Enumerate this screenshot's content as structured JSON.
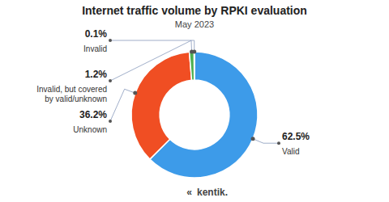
{
  "chart_data": {
    "type": "pie",
    "title": "Internet traffic volume by RPKI evaluation",
    "subtitle": "May 2023",
    "categories": [
      "Valid",
      "Unknown",
      "Invalid, but covered\nby valid/unknown",
      "Invalid"
    ],
    "values": [
      62.5,
      36.2,
      1.2,
      0.1
    ],
    "value_labels": [
      "62.5%",
      "36.2%",
      "1.2%",
      "0.1%"
    ],
    "colors": [
      "#3d9be9",
      "#f04e23",
      "#4caf50",
      "#1a5fb4"
    ],
    "annotations": [
      "«",
      "kentik."
    ]
  }
}
